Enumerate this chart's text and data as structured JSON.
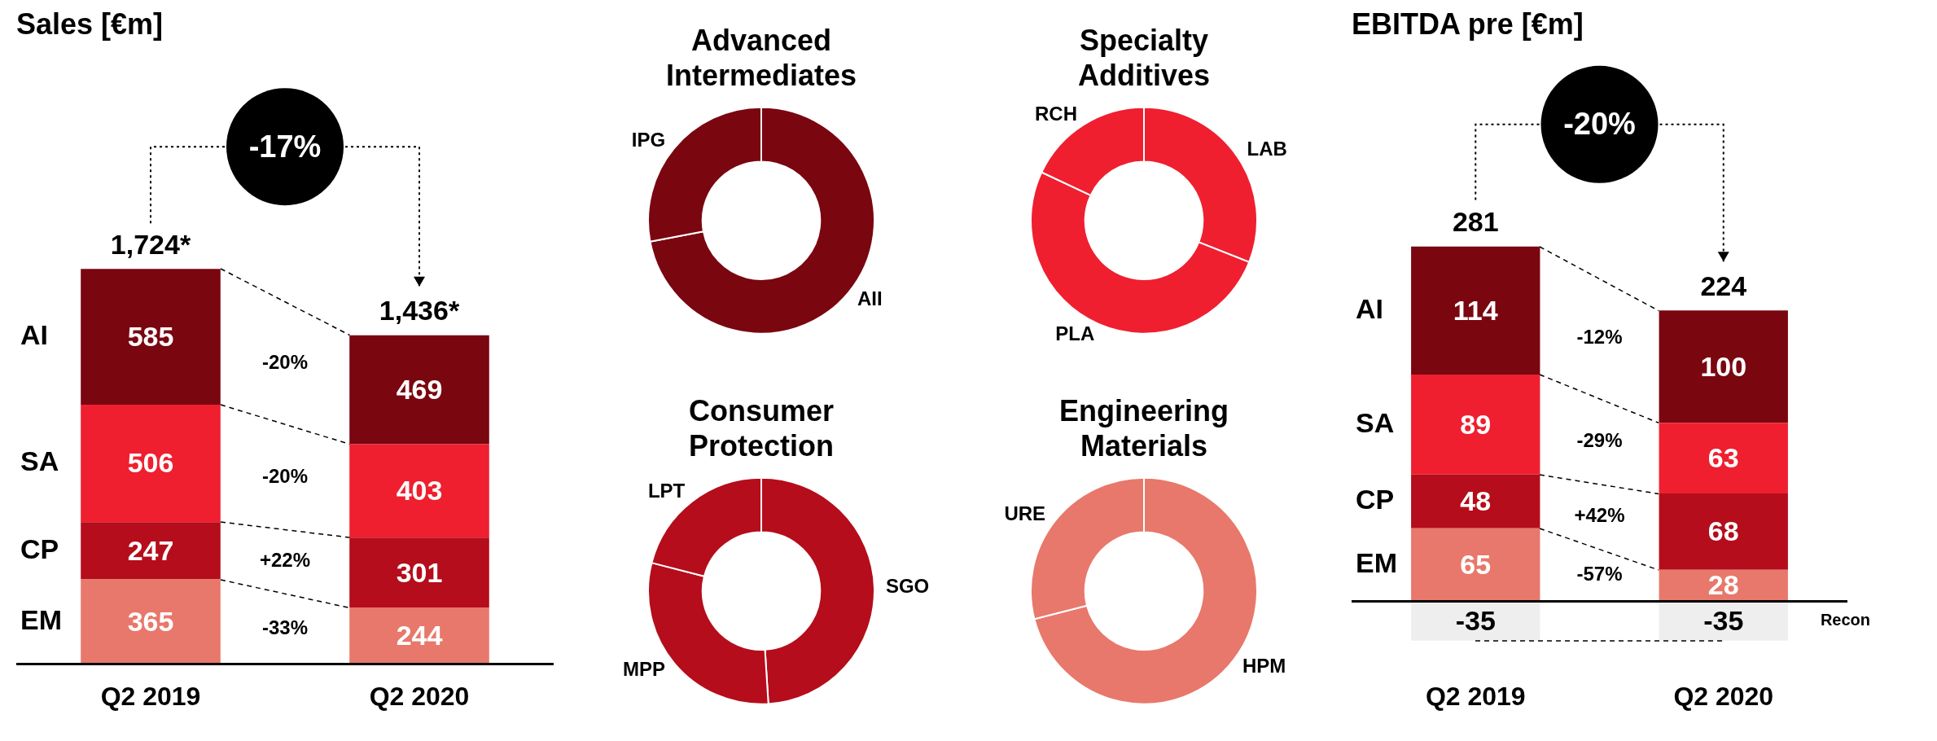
{
  "chart_data": [
    {
      "type": "bar",
      "title": "Sales [€m]",
      "categories": [
        "Q2 2019",
        "Q2 2020"
      ],
      "stacked": true,
      "data_labels": true,
      "series": [
        {
          "name": "EM",
          "color": "#e8786b",
          "values": [
            365,
            244
          ]
        },
        {
          "name": "CP",
          "color": "#b50d1b",
          "values": [
            247,
            301
          ]
        },
        {
          "name": "SA",
          "color": "#ef1f2f",
          "values": [
            506,
            403
          ]
        },
        {
          "name": "AI",
          "color": "#7a0610",
          "values": [
            585,
            469
          ]
        }
      ],
      "annotations": [
        "-17%",
        "-20%",
        "-20%",
        "+22%",
        "-33%",
        "1,724*",
        "1,436*"
      ]
    },
    {
      "type": "donut",
      "title": "Advanced Intermediates",
      "categories": [
        "AII",
        "IPG"
      ],
      "values": [
        72,
        28
      ],
      "colors": [
        "#7a0610",
        "#7a0610"
      ]
    },
    {
      "type": "donut",
      "title": "Specialty Additives",
      "categories": [
        "LAB",
        "PLA",
        "RCH"
      ],
      "values": [
        31,
        51,
        18
      ],
      "colors": [
        "#ef1f2f",
        "#ef1f2f",
        "#ef1f2f"
      ]
    },
    {
      "type": "donut",
      "title": "Consumer Protection",
      "categories": [
        "SGO",
        "MPP",
        "LPT"
      ],
      "values": [
        49,
        30,
        21
      ],
      "colors": [
        "#b50d1b",
        "#b50d1b",
        "#b50d1b"
      ]
    },
    {
      "type": "donut",
      "title": "Engineering Materials",
      "categories": [
        "HPM",
        "URE"
      ],
      "values": [
        71,
        29
      ],
      "colors": [
        "#e8786b",
        "#e8786b"
      ]
    },
    {
      "type": "bar",
      "title": "EBITDA pre [€m]",
      "categories": [
        "Q2 2019",
        "Q2 2020"
      ],
      "stacked": true,
      "data_labels": true,
      "series": [
        {
          "name": "EM",
          "color": "#e8786b",
          "values": [
            65,
            28
          ]
        },
        {
          "name": "CP",
          "color": "#b50d1b",
          "values": [
            48,
            68
          ]
        },
        {
          "name": "SA",
          "color": "#ef1f2f",
          "values": [
            89,
            63
          ]
        },
        {
          "name": "AI",
          "color": "#7a0610",
          "values": [
            114,
            100
          ]
        },
        {
          "name": "Recon",
          "color": "#eeeeee",
          "values": [
            -35,
            -35
          ]
        }
      ],
      "totals": [
        "281",
        "224"
      ],
      "annotations": [
        "-20%",
        "-12%",
        "-29%",
        "+42%",
        "-57%"
      ]
    }
  ]
}
